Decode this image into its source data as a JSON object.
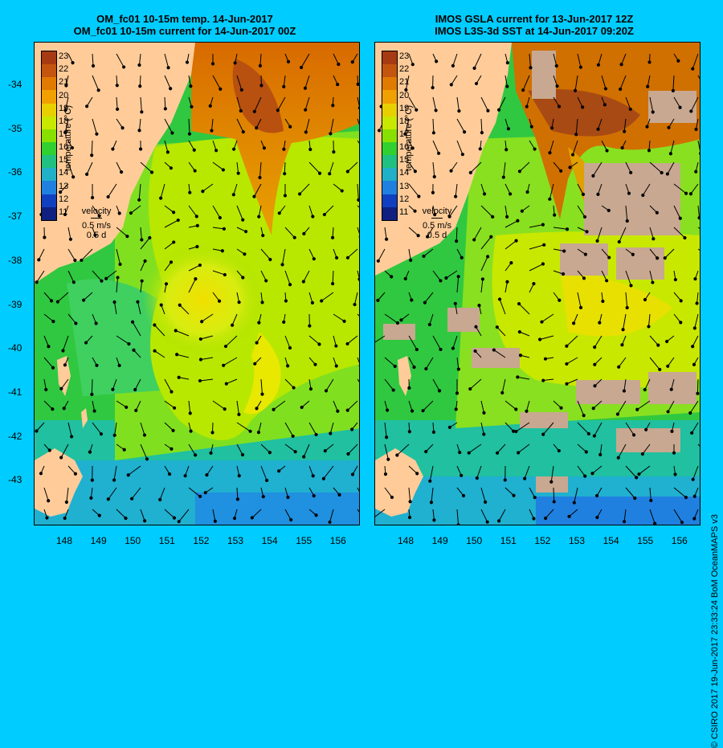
{
  "left_panel": {
    "title_line1": "OM_fc01 10-15m temp. 14-Jun-2017",
    "title_line2": "OM_fc01 10-15m current for 14-Jun-2017 00Z"
  },
  "right_panel": {
    "title_line1": "IMOS GSLA current for 13-Jun-2017 12Z",
    "title_line2": "IMOS L3S-3d SST at 14-Jun-2017 09:20Z"
  },
  "colorbar": {
    "title": "temperature (°C)",
    "ticks": [
      "23",
      "22",
      "21",
      "20",
      "19",
      "18",
      "17",
      "16",
      "15",
      "14",
      "13",
      "12",
      "11"
    ],
    "colors": [
      "#a63a12",
      "#c4550f",
      "#e07a00",
      "#f0a000",
      "#e8d000",
      "#c8e800",
      "#88e000",
      "#30d030",
      "#20c080",
      "#20b0c8",
      "#2080e0",
      "#1040c0",
      "#102080"
    ]
  },
  "velocity_legend": {
    "label": "velocity",
    "speed": "0.5 m/s",
    "duration": "0.5 d"
  },
  "lat_ticks": [
    "-34",
    "-35",
    "-36",
    "-37",
    "-38",
    "-39",
    "-40",
    "-41",
    "-42",
    "-43"
  ],
  "lon_ticks": [
    "148",
    "149",
    "150",
    "151",
    "152",
    "153",
    "154",
    "155",
    "156"
  ],
  "credit": "© CSIRO 2017   19-Jun-2017 23:33:24 BoM OceanMAPS v3",
  "colors": {
    "land": "#ffcc99",
    "background": "#00ccff",
    "cloud": "#c8a890"
  }
}
